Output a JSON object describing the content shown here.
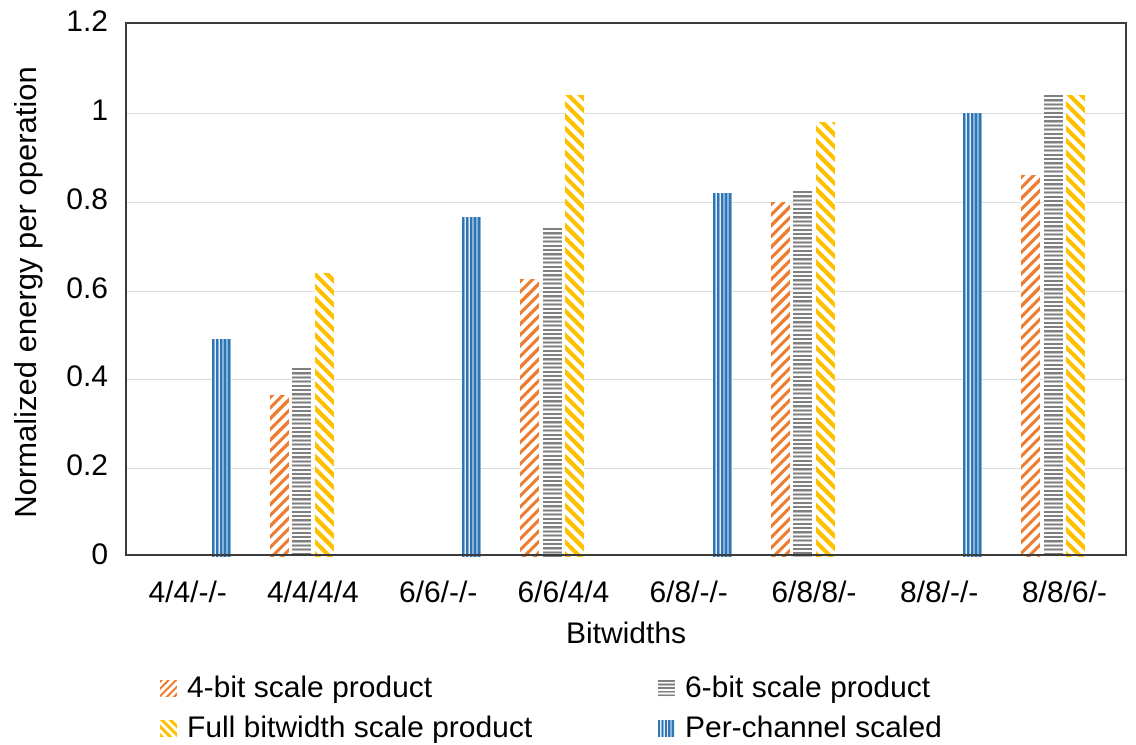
{
  "chart_data": {
    "type": "bar",
    "title": "",
    "xlabel": "Bitwidths",
    "ylabel": "Normalized energy per operation",
    "ylim": [
      0,
      1.2
    ],
    "yticks": [
      0,
      0.2,
      0.4,
      0.6,
      0.8,
      1,
      1.2
    ],
    "ytick_labels": [
      "0",
      "0.2",
      "0.4",
      "0.6",
      "0.8",
      "1",
      "1.2"
    ],
    "grid": "horizontal-on",
    "legend_position": "bottom-two-columns",
    "categories": [
      "4/4/-/-",
      "4/4/4/4",
      "6/6/-/-",
      "6/6/4/4",
      "6/8/-/-",
      "6/8/8/-",
      "8/8/-/-",
      "8/8/6/-"
    ],
    "series": [
      {
        "name": "4-bit scale product",
        "color": "#ED7D31",
        "pattern": "diagonal-up",
        "values": [
          null,
          0.365,
          null,
          0.625,
          null,
          0.8,
          null,
          0.86
        ]
      },
      {
        "name": "6-bit scale product",
        "color": "#7F7F7F",
        "pattern": "horizontal",
        "values": [
          null,
          0.425,
          null,
          0.74,
          null,
          0.825,
          null,
          1.04
        ]
      },
      {
        "name": "Full bitwidth scale product",
        "color": "#FFC000",
        "pattern": "diagonal-down",
        "values": [
          null,
          0.64,
          null,
          1.04,
          null,
          0.98,
          null,
          1.04
        ]
      },
      {
        "name": "Per-channel scaled",
        "color": "#2E75B6",
        "pattern": "vertical",
        "values": [
          0.49,
          null,
          0.765,
          null,
          0.82,
          null,
          1.0,
          null
        ]
      }
    ]
  }
}
